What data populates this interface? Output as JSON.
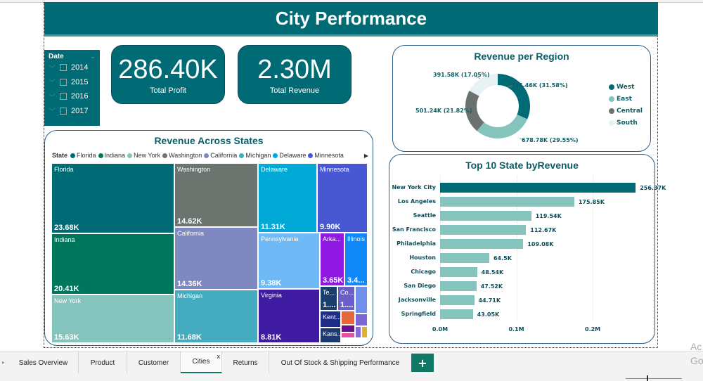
{
  "page": {
    "title": "City Performance",
    "watermark_line1": "Ac",
    "watermark_line2": "Go"
  },
  "slicer": {
    "title": "Date",
    "items": [
      {
        "label": "2014",
        "checked": false
      },
      {
        "label": "2015",
        "checked": false
      },
      {
        "label": "2016",
        "checked": false
      },
      {
        "label": "2017",
        "checked": false
      }
    ]
  },
  "kpis": [
    {
      "value": "286.40K",
      "label": "Total Profit"
    },
    {
      "value": "2.30M",
      "label": "Total Revenue"
    }
  ],
  "colors": {
    "brand": "#006b74",
    "accent_bar": "#85c4bc",
    "tab_active": "#117865"
  },
  "chart_data": [
    {
      "type": "pie",
      "variant": "donut",
      "title": "Revenue per Region",
      "legend_position": "right",
      "categories": [
        "West",
        "East",
        "Central",
        "South"
      ],
      "values": [
        725.46,
        678.78,
        501.24,
        391.58
      ],
      "unit": "K",
      "data_labels": [
        "725.46K (31.58%)",
        "678.78K (29.55%)",
        "501.24K (21.82%)",
        "391.58K (17.05%)"
      ],
      "percents": [
        31.58,
        29.55,
        21.82,
        17.05
      ],
      "colors": [
        "#006b74",
        "#85c4bc",
        "#6b716f",
        "#e8f2f5"
      ]
    },
    {
      "type": "treemap",
      "title": "Revenue Across States",
      "legend_title": "State",
      "legend_position": "top",
      "legend_items": [
        "Florida",
        "Indiana",
        "New York",
        "Washington",
        "California",
        "Michigan",
        "Delaware",
        "Minnesota"
      ],
      "tiles": [
        {
          "name": "Florida",
          "label": "23.68K",
          "value": 23.68,
          "color": "#006b74"
        },
        {
          "name": "Indiana",
          "label": "20.41K",
          "value": 20.41,
          "color": "#00765c"
        },
        {
          "name": "New York",
          "label": "15.63K",
          "value": 15.63,
          "color": "#85c4bc"
        },
        {
          "name": "Washington",
          "label": "14.62K",
          "value": 14.62,
          "color": "#6b746f"
        },
        {
          "name": "California",
          "label": "14.36K",
          "value": 14.36,
          "color": "#8088c2"
        },
        {
          "name": "Michigan",
          "label": "11.68K",
          "value": 11.68,
          "color": "#45abbf"
        },
        {
          "name": "Delaware",
          "label": "11.31K",
          "value": 11.31,
          "color": "#00a9d6"
        },
        {
          "name": "Minnesota",
          "label": "9.90K",
          "value": 9.9,
          "color": "#4857d2"
        },
        {
          "name": "Pennsylvania",
          "label": "9.38K",
          "value": 9.38,
          "color": "#6fb9f7"
        },
        {
          "name": "Virginia",
          "label": "8.81K",
          "value": 8.81,
          "color": "#3f1ba2"
        },
        {
          "name": "Arka...",
          "label": "3.65K",
          "value": 3.65,
          "color": "#8f18e3"
        },
        {
          "name": "Illinois",
          "label": "3.4...",
          "value": 3.4,
          "color": "#1188f7"
        },
        {
          "name": "Te...",
          "label": "1....",
          "value": null,
          "color": "#1a3f6e"
        },
        {
          "name": "Co...",
          "label": "1....",
          "value": null,
          "color": "#6a5fc8"
        },
        {
          "name": "",
          "label": "",
          "value": null,
          "color": "#6f8fe8"
        },
        {
          "name": "Kent...",
          "label": "",
          "value": null,
          "color": "#1e2d86"
        },
        {
          "name": "",
          "label": "",
          "value": null,
          "color": "#e4683c"
        },
        {
          "name": "",
          "label": "",
          "value": null,
          "color": "#7b66d2"
        },
        {
          "name": "Kans...",
          "label": "",
          "value": null,
          "color": "#1d3a6e"
        },
        {
          "name": "",
          "label": "",
          "value": null,
          "color": "#6a0f8f"
        },
        {
          "name": "",
          "label": "",
          "value": null,
          "color": "#e84ea3"
        },
        {
          "name": "",
          "label": "",
          "value": null,
          "color": "#8a6ad8"
        },
        {
          "name": "",
          "label": "",
          "value": null,
          "color": "#e0b02a"
        }
      ]
    },
    {
      "type": "bar",
      "orientation": "horizontal",
      "title": "Top 10 State byRevenue",
      "categories": [
        "New York City",
        "Los Angeles",
        "Seattle",
        "San Francisco",
        "Philadelphia",
        "Houston",
        "Chicago",
        "San Diego",
        "Jacksonville",
        "Springfield"
      ],
      "values": [
        256.37,
        175.85,
        119.54,
        112.67,
        109.08,
        64.5,
        48.54,
        47.52,
        44.71,
        43.05
      ],
      "unit": "K",
      "data_labels": [
        "256.37K",
        "175.85K",
        "119.54K",
        "112.67K",
        "109.08K",
        "64.5K",
        "48.54K",
        "47.52K",
        "44.71K",
        "43.05K"
      ],
      "xaxis_ticks": [
        "0.0M",
        "0.1M",
        "0.2M"
      ],
      "xlim": [
        0,
        270
      ],
      "grid": true,
      "highlight_index": 0
    }
  ],
  "tabs": {
    "items": [
      {
        "label": "Sales Overview",
        "active": false
      },
      {
        "label": "Product",
        "active": false
      },
      {
        "label": "Customer",
        "active": false
      },
      {
        "label": "Cities",
        "active": true
      },
      {
        "label": "Returns",
        "active": false
      },
      {
        "label": "Out Of Stock & Shipping Performance",
        "active": false
      }
    ],
    "close_glyph": "x",
    "add_glyph": "+",
    "scroll_glyph": "▸"
  },
  "icons": {
    "chevron_down": "⌄",
    "expand": "﹀",
    "legend_next": "▶"
  }
}
